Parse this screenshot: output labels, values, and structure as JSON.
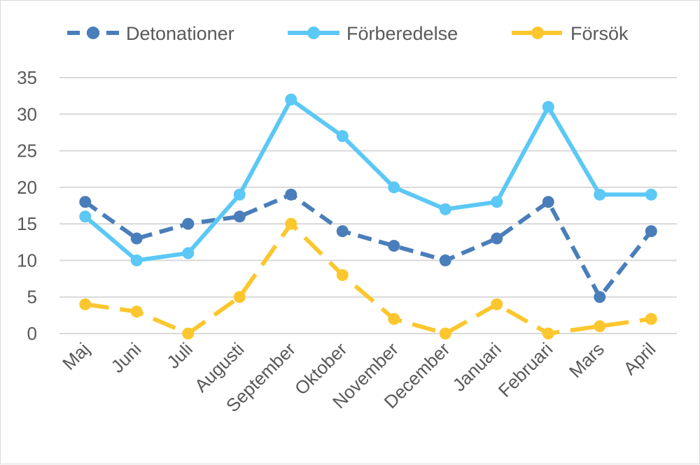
{
  "chart_data": {
    "type": "line",
    "categories": [
      "Maj",
      "Juni",
      "Juli",
      "Augusti",
      "September",
      "Oktober",
      "November",
      "December",
      "Januari",
      "Februari",
      "Mars",
      "April"
    ],
    "series": [
      {
        "name": "Detonationer",
        "values": [
          18,
          13,
          15,
          16,
          19,
          14,
          12,
          10,
          13,
          18,
          5,
          14
        ],
        "color": "#4a7ebb",
        "dash": "dashed"
      },
      {
        "name": "Förberedelse",
        "values": [
          16,
          10,
          11,
          19,
          32,
          27,
          20,
          17,
          18,
          31,
          19,
          19
        ],
        "color": "#5bc8f5",
        "dash": "solid"
      },
      {
        "name": "Försök",
        "values": [
          4,
          3,
          0,
          5,
          15,
          8,
          2,
          0,
          4,
          0,
          1,
          2
        ],
        "color": "#fcc72e",
        "dash": "long-dash"
      }
    ],
    "y_ticks": [
      "0",
      "5",
      "10",
      "15",
      "20",
      "25",
      "30",
      "35"
    ],
    "ylim": [
      0,
      35
    ],
    "grid": true,
    "legend_position": "top"
  }
}
